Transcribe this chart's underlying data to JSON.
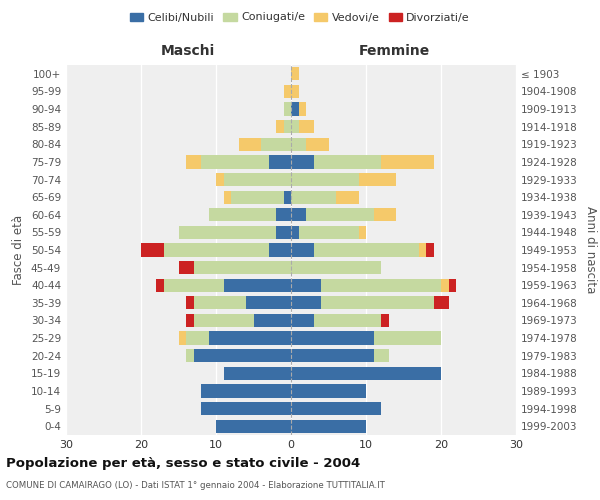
{
  "age_groups": [
    "0-4",
    "5-9",
    "10-14",
    "15-19",
    "20-24",
    "25-29",
    "30-34",
    "35-39",
    "40-44",
    "45-49",
    "50-54",
    "55-59",
    "60-64",
    "65-69",
    "70-74",
    "75-79",
    "80-84",
    "85-89",
    "90-94",
    "95-99",
    "100+"
  ],
  "birth_years": [
    "1999-2003",
    "1994-1998",
    "1989-1993",
    "1984-1988",
    "1979-1983",
    "1974-1978",
    "1969-1973",
    "1964-1968",
    "1959-1963",
    "1954-1958",
    "1949-1953",
    "1944-1948",
    "1939-1943",
    "1934-1938",
    "1929-1933",
    "1924-1928",
    "1919-1923",
    "1914-1918",
    "1909-1913",
    "1904-1908",
    "≤ 1903"
  ],
  "colors": {
    "celibi": "#3A6EA5",
    "coniugati": "#C5D9A0",
    "vedovi": "#F5C96A",
    "divorziati": "#CC2222"
  },
  "males": {
    "celibi": [
      10,
      12,
      12,
      9,
      13,
      11,
      5,
      6,
      9,
      0,
      3,
      2,
      2,
      1,
      0,
      3,
      0,
      0,
      0,
      0,
      0
    ],
    "coniugati": [
      0,
      0,
      0,
      0,
      1,
      3,
      8,
      7,
      8,
      13,
      14,
      13,
      9,
      7,
      9,
      9,
      4,
      1,
      1,
      0,
      0
    ],
    "vedovi": [
      0,
      0,
      0,
      0,
      0,
      1,
      0,
      0,
      0,
      0,
      0,
      0,
      0,
      1,
      1,
      2,
      3,
      1,
      0,
      1,
      0
    ],
    "divorziati": [
      0,
      0,
      0,
      0,
      0,
      0,
      1,
      1,
      1,
      2,
      3,
      0,
      0,
      0,
      0,
      0,
      0,
      0,
      0,
      0,
      0
    ]
  },
  "females": {
    "celibi": [
      10,
      12,
      10,
      20,
      11,
      11,
      3,
      4,
      4,
      0,
      3,
      1,
      2,
      0,
      0,
      3,
      0,
      0,
      1,
      0,
      0
    ],
    "coniugati": [
      0,
      0,
      0,
      0,
      2,
      9,
      9,
      15,
      16,
      12,
      14,
      8,
      9,
      6,
      9,
      9,
      2,
      1,
      0,
      0,
      0
    ],
    "vedovi": [
      0,
      0,
      0,
      0,
      0,
      0,
      0,
      0,
      1,
      0,
      1,
      1,
      3,
      3,
      5,
      7,
      3,
      2,
      1,
      1,
      1
    ],
    "divorziati": [
      0,
      0,
      0,
      0,
      0,
      0,
      1,
      2,
      1,
      0,
      1,
      0,
      0,
      0,
      0,
      0,
      0,
      0,
      0,
      0,
      0
    ]
  },
  "xlim": 30,
  "title": "Popolazione per età, sesso e stato civile - 2004",
  "subtitle": "COMUNE DI CAMAIRAGO (LO) - Dati ISTAT 1° gennaio 2004 - Elaborazione TUTTITALIA.IT",
  "ylabel_left": "Fasce di età",
  "ylabel_right": "Anni di nascita",
  "xlabel_males": "Maschi",
  "xlabel_females": "Femmine",
  "legend_labels": [
    "Celibi/Nubili",
    "Coniugati/e",
    "Vedovi/e",
    "Divorziati/e"
  ],
  "bg_color": "#FFFFFF",
  "plot_bg_color": "#EFEFEF"
}
